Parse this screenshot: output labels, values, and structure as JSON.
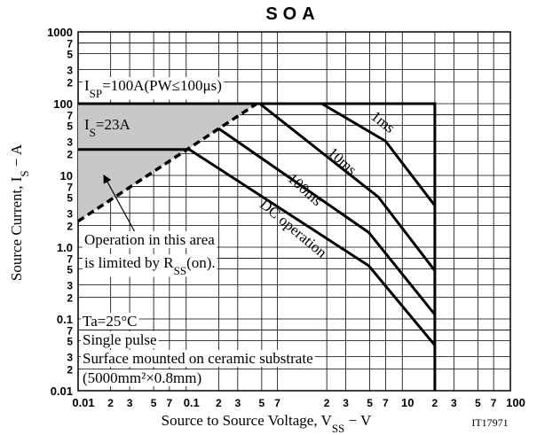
{
  "chart_data": {
    "type": "line",
    "title": "SOA",
    "xlabel": [
      {
        "text": "Source to Source Voltage, V"
      },
      {
        "text": "SS",
        "sub": true
      },
      {
        "text": " − V"
      }
    ],
    "ylabel": [
      {
        "text": "Source Current, I"
      },
      {
        "text": "S",
        "sub": true
      },
      {
        "text": " − A"
      }
    ],
    "code": "IT17971",
    "xscale": "log",
    "yscale": "log",
    "grid": true,
    "xlim": [
      0.01,
      100
    ],
    "ylim": [
      0.01,
      1000
    ],
    "xticks": [
      0.01,
      {
        "value": 0.02,
        "label": "2"
      },
      {
        "value": 0.03,
        "label": "3"
      },
      {
        "value": 0.05,
        "label": "5"
      },
      {
        "value": 0.07,
        "label": "7"
      },
      0.1,
      {
        "value": 0.2,
        "label": "2"
      },
      {
        "value": 0.3,
        "label": "3"
      },
      {
        "value": 0.5,
        "label": "5"
      },
      {
        "value": 0.7,
        "label": "7"
      },
      {
        "value": 2,
        "label": "2"
      },
      {
        "value": 3,
        "label": "3"
      },
      {
        "value": 5,
        "label": "5"
      },
      {
        "value": 7,
        "label": "7"
      },
      10,
      {
        "value": 20,
        "label": "2"
      },
      {
        "value": 30,
        "label": "3"
      },
      {
        "value": 50,
        "label": "5"
      },
      {
        "value": 70,
        "label": "7"
      },
      100
    ],
    "yticks": [
      0.01,
      {
        "value": 0.02,
        "label": "2"
      },
      {
        "value": 0.03,
        "label": "3"
      },
      {
        "value": 0.05,
        "label": "5"
      },
      {
        "value": 0.07,
        "label": "7"
      },
      0.1,
      {
        "value": 0.2,
        "label": "2"
      },
      {
        "value": 0.3,
        "label": "3"
      },
      {
        "value": 0.5,
        "label": "5"
      },
      {
        "value": 0.7,
        "label": "7"
      },
      {
        "value": 1,
        "label": "1.0"
      },
      {
        "value": 2,
        "label": "2"
      },
      {
        "value": 3,
        "label": "3"
      },
      {
        "value": 5,
        "label": "5"
      },
      {
        "value": 7,
        "label": "7"
      },
      10,
      {
        "value": 20,
        "label": "2"
      },
      {
        "value": 30,
        "label": "3"
      },
      {
        "value": 50,
        "label": "5"
      },
      {
        "value": 70,
        "label": "7"
      },
      100,
      {
        "value": 200,
        "label": "2"
      },
      {
        "value": 300,
        "label": "3"
      },
      {
        "value": 500,
        "label": "5"
      },
      {
        "value": 700,
        "label": "7"
      },
      1000
    ],
    "series": [
      {
        "name": "1ms",
        "color": "#000000",
        "x": [
          1.8,
          7,
          20
        ],
        "values": [
          100,
          30,
          3.8
        ]
      },
      {
        "name": "10ms",
        "color": "#000000",
        "x": [
          0.48,
          6,
          20
        ],
        "values": [
          100,
          5,
          0.47
        ]
      },
      {
        "name": "100ms",
        "color": "#000000",
        "x": [
          0.2,
          4.9,
          20
        ],
        "values": [
          45,
          1.6,
          0.115
        ]
      },
      {
        "name": "DC operation",
        "color": "#000000",
        "x": [
          0.107,
          4.9,
          20
        ],
        "values": [
          23,
          0.55,
          0.043
        ]
      }
    ],
    "boundary": {
      "x": [
        0.01,
        20,
        20
      ],
      "values": [
        100,
        100,
        0.01
      ],
      "color": "#000000"
    },
    "is_line": {
      "x": [
        0.01,
        0.107
      ],
      "values": [
        23,
        23
      ],
      "color": "#000000"
    },
    "limit_line": {
      "x": [
        0.01,
        0.45
      ],
      "values": [
        2.3,
        100
      ],
      "color": "#000000",
      "dashed": true,
      "fill": "#c8c8c8"
    },
    "annotations": [
      {
        "segments": [
          {
            "text": "I"
          },
          {
            "text": "SP",
            "sub": true
          },
          {
            "text": "=100A(PW≤100μs)"
          }
        ]
      },
      {
        "segments": [
          {
            "text": "I"
          },
          {
            "text": "S",
            "sub": true
          },
          {
            "text": "=23A"
          }
        ]
      },
      {
        "segments": [
          {
            "text": "Operation in this area"
          }
        ]
      },
      {
        "segments": [
          {
            "text": "is limited by R"
          },
          {
            "text": "SS",
            "sub": true
          },
          {
            "text": "(on)."
          }
        ]
      },
      {
        "segments": [
          {
            "text": "Ta=25°C"
          }
        ]
      },
      {
        "segments": [
          {
            "text": "Single pulse"
          }
        ]
      },
      {
        "segments": [
          {
            "text": "Surface mounted on ceramic substrate"
          }
        ]
      },
      {
        "segments": [
          {
            "text": "(5000mm²×0.8mm)"
          }
        ]
      }
    ]
  }
}
